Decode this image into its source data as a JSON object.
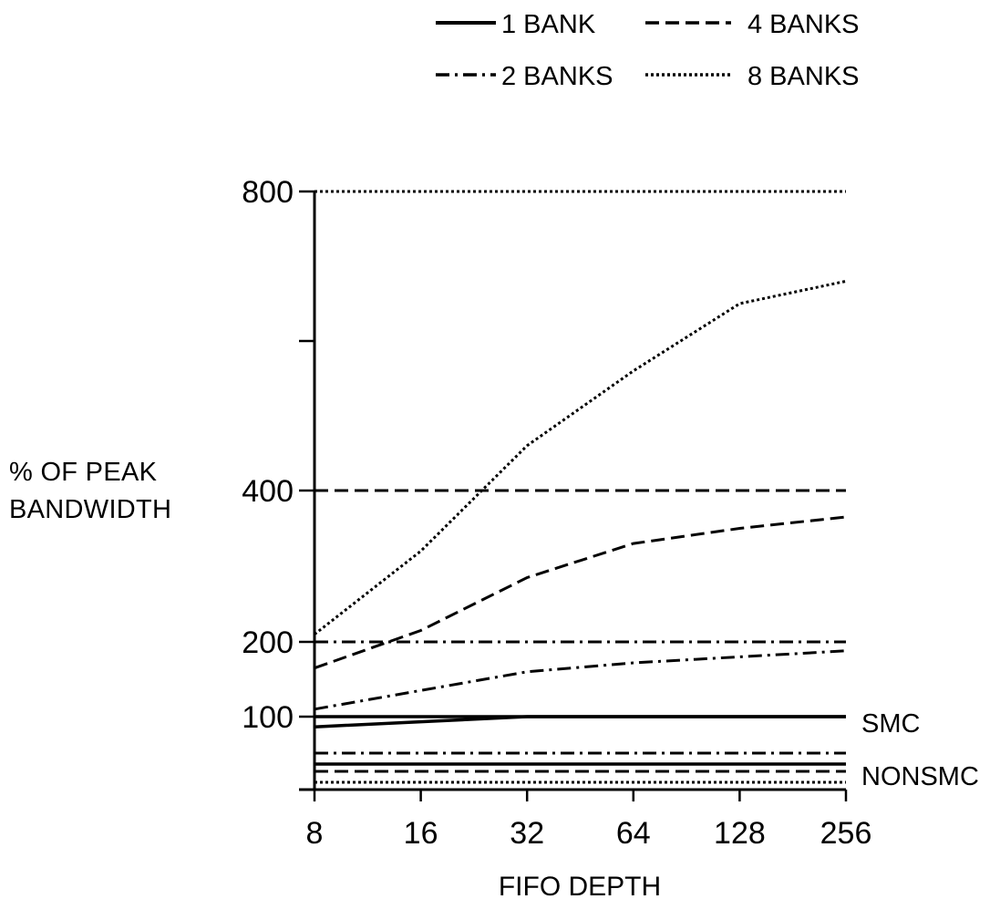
{
  "chart_data": {
    "type": "line",
    "xlabel": "FIFO DEPTH",
    "ylabel_lines": [
      "% OF PEAK",
      "BANDWIDTH"
    ],
    "x": [
      8,
      16,
      32,
      64,
      128,
      256
    ],
    "x_tick_labels": [
      "8",
      "16",
      "32",
      "64",
      "128",
      "256"
    ],
    "x_scale": "log2",
    "y_scale": "piecewise",
    "y_ticks": [
      100,
      200,
      400,
      800
    ],
    "y_tick_labels": [
      "100",
      "200",
      "400",
      "800"
    ],
    "ylim": [
      0,
      800
    ],
    "grid": false,
    "legend_position": "top-right",
    "legend": [
      {
        "label": "1 BANK",
        "style": "solid"
      },
      {
        "label": "4 BANKS",
        "style": "dashed"
      },
      {
        "label": "2 BANKS",
        "style": "dashdot"
      },
      {
        "label": "8 BANKS",
        "style": "dotted"
      }
    ],
    "annotations": [
      {
        "text": "SMC",
        "group": "SMC"
      },
      {
        "text": "NONSMC",
        "group": "NONSMC"
      }
    ],
    "series": [
      {
        "name": "1 BANK",
        "group": "peak",
        "style": "solid",
        "values": [
          100,
          100,
          100,
          100,
          100,
          100
        ]
      },
      {
        "name": "2 BANKS",
        "group": "peak",
        "style": "dashdot",
        "values": [
          200,
          200,
          200,
          200,
          200,
          200
        ]
      },
      {
        "name": "4 BANKS",
        "group": "peak",
        "style": "dashed",
        "values": [
          400,
          400,
          400,
          400,
          400,
          400
        ]
      },
      {
        "name": "8 BANKS",
        "group": "peak",
        "style": "dotted",
        "values": [
          800,
          800,
          800,
          800,
          800,
          800
        ]
      },
      {
        "name": "1 BANK",
        "group": "SMC",
        "style": "solid",
        "values": [
          86,
          93,
          100,
          100,
          100,
          100
        ]
      },
      {
        "name": "2 BANKS",
        "group": "SMC",
        "style": "dashdot",
        "values": [
          110,
          135,
          160,
          172,
          180,
          188
        ]
      },
      {
        "name": "4 BANKS",
        "group": "SMC",
        "style": "dashed",
        "values": [
          165,
          215,
          285,
          330,
          350,
          365
        ]
      },
      {
        "name": "8 BANKS",
        "group": "SMC",
        "style": "dotted",
        "values": [
          210,
          320,
          460,
          560,
          650,
          680
        ]
      },
      {
        "name": "2 BANKS",
        "group": "NONSMC",
        "style": "dashdot",
        "values": [
          50,
          50,
          50,
          50,
          50,
          50
        ]
      },
      {
        "name": "1 BANK",
        "group": "NONSMC",
        "style": "solid",
        "values": [
          35,
          35,
          35,
          35,
          35,
          35
        ]
      },
      {
        "name": "4 BANKS",
        "group": "NONSMC",
        "style": "dashed",
        "values": [
          25,
          25,
          25,
          25,
          25,
          25
        ]
      },
      {
        "name": "8 BANKS",
        "group": "NONSMC",
        "style": "dotted",
        "values": [
          10,
          10,
          10,
          10,
          10,
          10
        ]
      }
    ]
  }
}
